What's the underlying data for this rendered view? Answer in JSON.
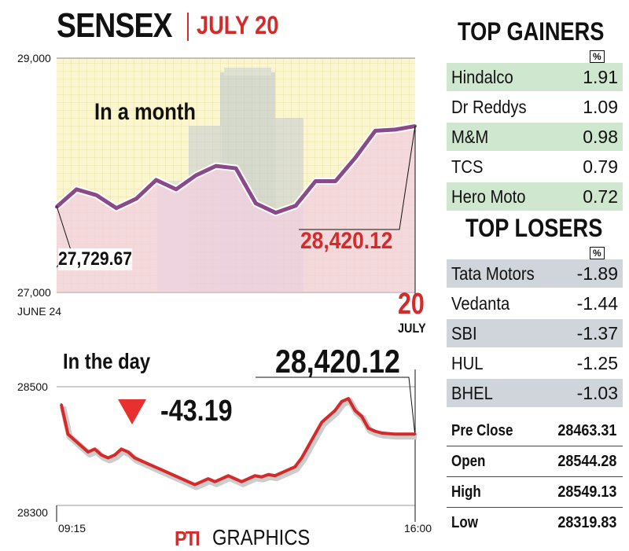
{
  "header": {
    "title": "SENSEX",
    "date": "JULY 20"
  },
  "month_panel": {
    "title": "In a month",
    "y_max_label": "29,000",
    "y_min_label": "27,000",
    "start_label": "JUNE 24",
    "end_day": "20",
    "end_month": "JULY",
    "start_value_label": "27,729.67",
    "end_value_label": "28,420.12"
  },
  "day_panel": {
    "title": "In the day",
    "change": "-43.19",
    "close_label": "28,420.12",
    "y_high_label": "28500",
    "y_low_label": "28300",
    "x_start": "09:15",
    "x_end": "16:00"
  },
  "gainers": {
    "title": "TOP GAINERS",
    "unit": "%",
    "rows": [
      {
        "name": "Hindalco",
        "value": "1.91"
      },
      {
        "name": "Dr Reddys",
        "value": "1.09"
      },
      {
        "name": "M&M",
        "value": "0.98"
      },
      {
        "name": "TCS",
        "value": "0.79"
      },
      {
        "name": "Hero Moto",
        "value": "0.72"
      }
    ]
  },
  "losers": {
    "title": "TOP LOSERS",
    "unit": "%",
    "rows": [
      {
        "name": "Tata Motors",
        "value": "-1.89"
      },
      {
        "name": "Vedanta",
        "value": "-1.44"
      },
      {
        "name": "SBI",
        "value": "-1.37"
      },
      {
        "name": "HUL",
        "value": "-1.25"
      },
      {
        "name": "BHEL",
        "value": "-1.03"
      }
    ]
  },
  "stats": [
    {
      "name": "Pre Close",
      "value": "28463.31"
    },
    {
      "name": "Open",
      "value": "28544.28"
    },
    {
      "name": "High",
      "value": "28549.13"
    },
    {
      "name": "Low",
      "value": "28319.83"
    }
  ],
  "credit": {
    "pti": "PTI",
    "graphics": "GRAPHICS"
  },
  "colors": {
    "accent_red": "#d42a2a",
    "month_line": "#8a4a8a",
    "gainer_shade": "#cfe6cf",
    "loser_shade": "#cfd5db"
  },
  "chart_data": [
    {
      "type": "area",
      "title": "In a month",
      "ylim": [
        27000,
        29000
      ],
      "x_start": "JUNE 24",
      "x_end": "JULY 20",
      "values": [
        27729.67,
        27880,
        27830,
        27720,
        27800,
        27960,
        27880,
        28000,
        28080,
        28060,
        27760,
        27680,
        27740,
        27950,
        27950,
        28150,
        28380,
        28390,
        28420.12
      ],
      "annotations": [
        "27,729.67",
        "28,420.12"
      ]
    },
    {
      "type": "line",
      "title": "In the day",
      "ylim": [
        28280,
        28570
      ],
      "y_ticks": [
        28300,
        28500
      ],
      "x_start": "09:15",
      "x_end": "16:00",
      "values": [
        28470,
        28420,
        28410,
        28400,
        28390,
        28395,
        28385,
        28380,
        28385,
        28395,
        28390,
        28380,
        28375,
        28370,
        28365,
        28360,
        28355,
        28350,
        28345,
        28340,
        28335,
        28340,
        28345,
        28340,
        28345,
        28350,
        28345,
        28340,
        28345,
        28350,
        28348,
        28352,
        28350,
        28355,
        28360,
        28365,
        28380,
        28400,
        28420,
        28440,
        28450,
        28460,
        28475,
        28480,
        28460,
        28450,
        28430,
        28425,
        28422,
        28421,
        28420.12,
        28420.12,
        28420.12,
        28420.12
      ],
      "change": "-43.19",
      "close": "28,420.12"
    }
  ]
}
